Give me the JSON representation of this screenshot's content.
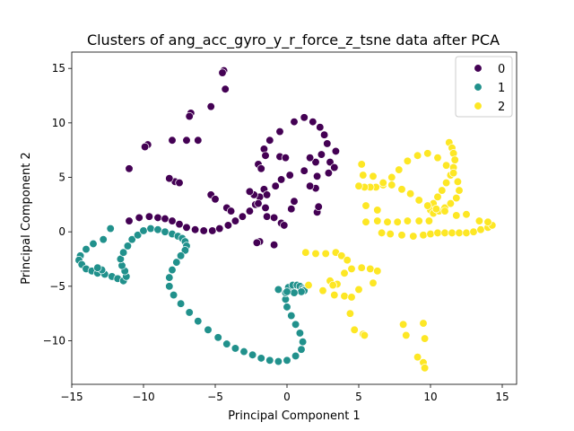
{
  "chart_data": {
    "type": "scatter",
    "title": "Clusters of ang_acc_gyro_y_r_force_z_tsne data after PCA",
    "xlabel": "Principal Component 1",
    "ylabel": "Principal Component 2",
    "xlim": [
      -15,
      16
    ],
    "ylim": [
      -14,
      16.5
    ],
    "xticks": [
      -15,
      -10,
      -5,
      0,
      5,
      10,
      15
    ],
    "yticks": [
      -10,
      -5,
      0,
      5,
      10,
      15
    ],
    "xtick_labels": [
      "−15",
      "−10",
      "−5",
      "0",
      "5",
      "10",
      "15"
    ],
    "ytick_labels": [
      "−10",
      "−5",
      "0",
      "5",
      "10",
      "15"
    ],
    "grid": false,
    "legend_position": "top-right",
    "series": [
      {
        "name": "0",
        "color": "#440154",
        "x": [
          -4.4,
          -4.5,
          -4.3,
          -5.3,
          -6.7,
          -6.8,
          -8.0,
          -9.7,
          -9.9,
          -6.2,
          -7.0,
          -11.0,
          -7.8,
          -7.5,
          -8.2,
          -5.3,
          -5.0,
          -4.2,
          -3.9,
          -11.0,
          -10.3,
          -9.6,
          -9.0,
          -8.5,
          -8.0,
          -7.5,
          -7.0,
          -6.4,
          -5.8,
          -5.2,
          -4.7,
          -4.1,
          -3.6,
          -3.1,
          -2.6,
          -2.2,
          -1.9,
          -1.6,
          -2.0,
          -1.6,
          -1.2,
          -0.5,
          0.5,
          1.2,
          1.8,
          2.3,
          2.6,
          2.8,
          2.4,
          2.0,
          1.2,
          0.2,
          -0.4,
          -0.8,
          -1.4,
          -2.0,
          -2.3,
          -2.6,
          -1.5,
          -1.8,
          -0.5,
          -0.1,
          2.1,
          2.9,
          3.0,
          3.3,
          3.4,
          2.0,
          1.6,
          1.6,
          0.3,
          0.5,
          -1.5,
          -1.4,
          -0.9,
          -0.4,
          -0.2,
          -0.9,
          -1.9,
          -2.1,
          2.1,
          2.2
        ],
        "y": [
          14.8,
          14.6,
          13.1,
          11.5,
          10.9,
          10.6,
          8.4,
          8.0,
          7.8,
          8.4,
          8.4,
          5.8,
          4.6,
          4.5,
          4.9,
          3.4,
          3.0,
          2.2,
          1.9,
          1.0,
          1.3,
          1.4,
          1.3,
          1.2,
          1.0,
          0.7,
          0.4,
          0.2,
          0.1,
          0.1,
          0.3,
          0.6,
          1.0,
          1.4,
          1.9,
          2.5,
          3.2,
          3.9,
          6.2,
          7.6,
          8.4,
          9.2,
          10.1,
          10.5,
          10.1,
          9.6,
          8.9,
          8.1,
          7.1,
          6.4,
          5.6,
          5.2,
          4.8,
          4.2,
          3.4,
          2.6,
          3.4,
          3.7,
          7.0,
          5.8,
          6.9,
          6.8,
          5.1,
          5.4,
          6.4,
          5.9,
          7.4,
          4.0,
          4.2,
          6.8,
          2.1,
          2.8,
          2.2,
          1.4,
          1.3,
          0.8,
          0.6,
          -1.2,
          -0.9,
          -1.0,
          1.8,
          2.3
        ]
      },
      {
        "name": "1",
        "color": "#21918c",
        "x": [
          -14.4,
          -14.5,
          -14.3,
          -14.0,
          -13.6,
          -13.2,
          -12.7,
          -12.2,
          -11.8,
          -11.4,
          -11.2,
          -11.3,
          -11.5,
          -11.6,
          -11.4,
          -11.1,
          -10.8,
          -10.4,
          -10.0,
          -9.5,
          -9.0,
          -8.5,
          -8.0,
          -7.6,
          -7.3,
          -7.1,
          -7.0,
          -7.1,
          -7.4,
          -7.7,
          -8.0,
          -8.2,
          -8.2,
          -7.9,
          -7.4,
          -6.8,
          -6.2,
          -5.5,
          -4.8,
          -4.2,
          -3.6,
          -3.0,
          -2.4,
          -1.8,
          -1.2,
          -0.6,
          0.0,
          0.6,
          1.0,
          1.1,
          0.9,
          0.6,
          0.3,
          0.0,
          -0.1,
          -0.1,
          0.1,
          0.4,
          0.7,
          0.9,
          1.1,
          1.2,
          1.2,
          1.0,
          0.5,
          0.0,
          -0.6,
          -12.8,
          -12.3,
          -13.5,
          -14.0,
          -12.9,
          -13.2
        ],
        "y": [
          -2.2,
          -2.6,
          -3.0,
          -3.4,
          -3.6,
          -3.8,
          -3.9,
          -4.1,
          -4.3,
          -4.5,
          -4.1,
          -3.6,
          -3.1,
          -2.5,
          -1.9,
          -1.3,
          -0.7,
          -0.3,
          0.1,
          0.3,
          0.2,
          0.0,
          -0.2,
          -0.4,
          -0.6,
          -0.9,
          -1.3,
          -1.7,
          -2.2,
          -2.8,
          -3.5,
          -4.2,
          -5.0,
          -5.8,
          -6.6,
          -7.4,
          -8.2,
          -9.0,
          -9.7,
          -10.3,
          -10.7,
          -11.0,
          -11.3,
          -11.6,
          -11.8,
          -11.9,
          -11.8,
          -11.4,
          -10.8,
          -10.1,
          -9.3,
          -8.5,
          -7.7,
          -6.9,
          -6.2,
          -5.6,
          -5.1,
          -4.9,
          -4.9,
          -5.0,
          -5.2,
          -5.3,
          -5.4,
          -5.5,
          -5.6,
          -5.5,
          -5.3,
          -0.7,
          0.3,
          -1.1,
          -1.6,
          -3.5,
          -3.3
        ]
      },
      {
        "name": "2",
        "color": "#fde725",
        "x": [
          1.3,
          2.0,
          2.7,
          3.4,
          3.8,
          4.2,
          3.5,
          3.0,
          4.0,
          4.5,
          5.2,
          5.8,
          6.3,
          4.0,
          3.2,
          1.5,
          2.5,
          3.3,
          4.5,
          5.0,
          6.0,
          6.6,
          7.2,
          8.0,
          8.8,
          9.5,
          10.0,
          10.5,
          11.0,
          11.5,
          12.0,
          12.5,
          13.0,
          13.5,
          14.0,
          14.3,
          11.3,
          11.5,
          11.6,
          11.7,
          11.6,
          11.4,
          11.1,
          10.8,
          10.5,
          10.2,
          10.0,
          10.2,
          10.6,
          11.0,
          11.4,
          11.8,
          12.0,
          11.9,
          11.6,
          11.1,
          10.5,
          9.8,
          9.1,
          8.4,
          7.8,
          7.3,
          6.7,
          6.2,
          5.8,
          5.4,
          5.0,
          5.3,
          6.0,
          6.7,
          7.3,
          8.0,
          8.6,
          9.2,
          9.8,
          10.4,
          11.0,
          11.8,
          12.5,
          13.4,
          14.0,
          5.5,
          6.3,
          7.0,
          7.7,
          8.4,
          9.2,
          9.9,
          5.2,
          5.5,
          6.3,
          8.1,
          9.5,
          9.6,
          8.3,
          9.1,
          9.5,
          9.6,
          4.4,
          4.7,
          5.3,
          5.4
        ],
        "y": [
          -1.9,
          -2.0,
          -2.0,
          -1.9,
          -2.2,
          -2.6,
          -4.8,
          -4.5,
          -3.8,
          -3.4,
          -3.3,
          -3.4,
          -3.6,
          -5.9,
          -4.9,
          -4.9,
          -5.4,
          -5.8,
          -6.0,
          -5.3,
          -4.7,
          -0.1,
          -0.2,
          -0.3,
          -0.4,
          -0.3,
          -0.2,
          -0.1,
          -0.1,
          -0.1,
          -0.1,
          -0.1,
          0.0,
          0.2,
          0.4,
          0.6,
          8.2,
          7.7,
          7.2,
          6.6,
          5.9,
          5.2,
          4.5,
          3.8,
          3.2,
          2.6,
          2.0,
          1.7,
          1.9,
          2.2,
          2.6,
          3.1,
          3.8,
          4.6,
          5.4,
          6.1,
          6.8,
          7.2,
          7.0,
          6.5,
          5.7,
          5.0,
          4.3,
          4.1,
          4.1,
          4.1,
          4.2,
          5.2,
          5.1,
          4.5,
          4.3,
          3.9,
          3.5,
          2.9,
          2.4,
          2.1,
          1.9,
          1.5,
          1.6,
          1.0,
          0.9,
          0.9,
          1.0,
          0.9,
          0.9,
          1.0,
          1.0,
          1.0,
          6.2,
          2.4,
          2.0,
          -8.5,
          -8.4,
          -9.8,
          -9.5,
          -11.5,
          -12.0,
          -12.5,
          -7.5,
          -9.0,
          -9.4,
          -9.5
        ]
      }
    ]
  }
}
